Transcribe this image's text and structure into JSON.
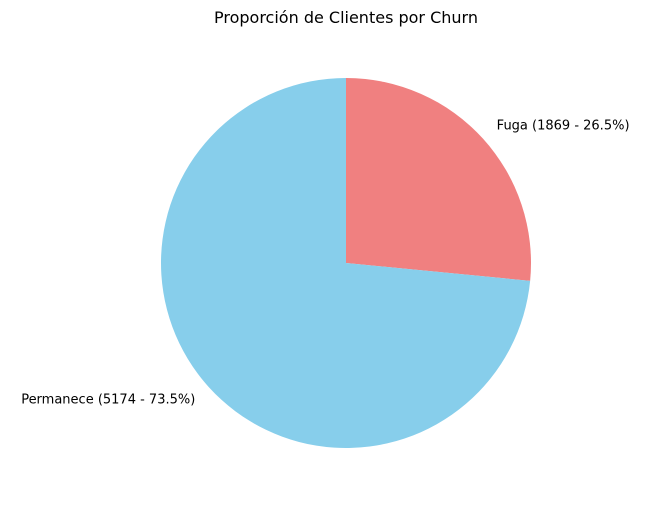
{
  "chart_data": {
    "type": "pie",
    "title": "Proporción de Clientes por Churn",
    "slices": [
      {
        "label": "Fuga (1869 - 26.5%)",
        "value": 1869,
        "percent": 26.5,
        "color": "#f08080"
      },
      {
        "label": "Permanece (5174 - 73.5%)",
        "value": 5174,
        "percent": 73.5,
        "color": "#87ceeb"
      }
    ],
    "start_angle_deg": 90,
    "direction": "clockwise",
    "legend": "none"
  }
}
